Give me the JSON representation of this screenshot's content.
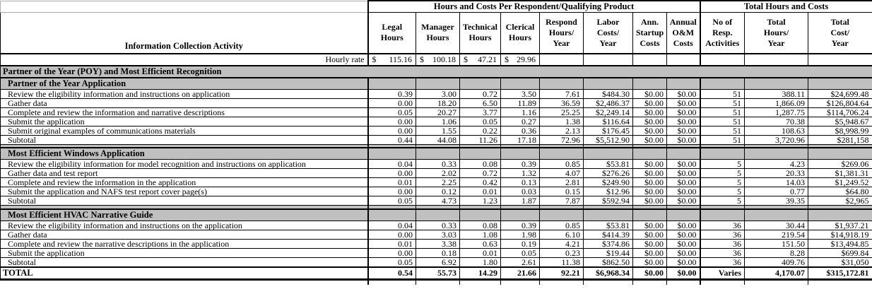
{
  "table": {
    "colors": {
      "band_gray": "#c0c0c0",
      "border_black": "#000000",
      "gridline_gray": "#ababab"
    },
    "header": {
      "respondent_group": "Hours and Costs Per Respondent/Qualifying Product",
      "total_group": "Total Hours and Costs"
    },
    "columns": [
      "Information Collection Activity",
      "Legal\nHours",
      "Manager\nHours",
      "Technical\nHours",
      "Clerical\nHours",
      "Respond\nHours/\nYear",
      "Labor\nCosts/\nYear",
      "Ann.\nStartup\nCosts",
      "Annual\nO&M\nCosts",
      "No of\nResp.\nActivities",
      "Total\nHours/\nYear",
      "Total\nCost/\nYear"
    ],
    "hourly_rate": {
      "label": "Hourly rate",
      "currency": "$",
      "values": [
        "115.16",
        "100.18",
        "47.21",
        "29.96"
      ]
    },
    "rows": [
      {
        "type": "section",
        "label": "Partner of the Year (POY) and Most Efficient Recognition"
      },
      {
        "type": "subsection",
        "label": "Partner of the Year Application"
      },
      {
        "type": "data",
        "label": "Review the eligibility information and instructions on application",
        "values": [
          "0.39",
          "3.00",
          "0.72",
          "3.50",
          "7.61",
          "$484.30",
          "$0.00",
          "$0.00",
          "51",
          "388.11",
          "$24,699.48"
        ]
      },
      {
        "type": "data",
        "label": "Gather data",
        "values": [
          "0.00",
          "18.20",
          "6.50",
          "11.89",
          "36.59",
          "$2,486.37",
          "$0.00",
          "$0.00",
          "51",
          "1,866.09",
          "$126,804.64"
        ]
      },
      {
        "type": "data",
        "label": "Complete and review the information and narrative descriptions",
        "values": [
          "0.05",
          "20.27",
          "3.77",
          "1.16",
          "25.25",
          "$2,249.14",
          "$0.00",
          "$0.00",
          "51",
          "1,287.75",
          "$114,706.24"
        ]
      },
      {
        "type": "data",
        "label": "Submit the application",
        "values": [
          "0.00",
          "1.06",
          "0.05",
          "0.27",
          "1.38",
          "$116.64",
          "$0.00",
          "$0.00",
          "51",
          "70.38",
          "$5,948.67"
        ]
      },
      {
        "type": "data",
        "label": "Submit original examples of communications materials",
        "values": [
          "0.00",
          "1.55",
          "0.22",
          "0.36",
          "2.13",
          "$176.45",
          "$0.00",
          "$0.00",
          "51",
          "108.63",
          "$8,998.99"
        ]
      },
      {
        "type": "data",
        "label": "Subtotal",
        "values": [
          "0.44",
          "44.08",
          "11.26",
          "17.18",
          "72.96",
          "$5,512.90",
          "$0.00",
          "$0.00",
          "51",
          "3,720.96",
          "$281,158"
        ]
      },
      {
        "type": "spacer"
      },
      {
        "type": "subsection",
        "label": "Most Efficient Windows Application"
      },
      {
        "type": "data",
        "label": "Review the eligibility information for model recognition and instructions on application",
        "values": [
          "0.04",
          "0.33",
          "0.08",
          "0.39",
          "0.85",
          "$53.81",
          "$0.00",
          "$0.00",
          "5",
          "4.23",
          "$269.06"
        ]
      },
      {
        "type": "data",
        "label": "Gather data and test report",
        "values": [
          "0.00",
          "2.02",
          "0.72",
          "1.32",
          "4.07",
          "$276.26",
          "$0.00",
          "$0.00",
          "5",
          "20.33",
          "$1,381.31"
        ]
      },
      {
        "type": "data",
        "label": "Complete and review the information in the application",
        "values": [
          "0.01",
          "2.25",
          "0.42",
          "0.13",
          "2.81",
          "$249.90",
          "$0.00",
          "$0.00",
          "5",
          "14.03",
          "$1,249.52"
        ]
      },
      {
        "type": "data",
        "label": "Submit the application and NAFS test report cover page(s)",
        "values": [
          "0.00",
          "0.12",
          "0.01",
          "0.03",
          "0.15",
          "$12.96",
          "$0.00",
          "$0.00",
          "5",
          "0.77",
          "$64.80"
        ]
      },
      {
        "type": "data",
        "label": "Subtotal",
        "values": [
          "0.05",
          "4.73",
          "1.23",
          "1.87",
          "7.87",
          "$592.94",
          "$0.00",
          "$0.00",
          "5",
          "39.35",
          "$2,965"
        ]
      },
      {
        "type": "spacer"
      },
      {
        "type": "subsection",
        "label": "Most Efficient HVAC Narrative Guide"
      },
      {
        "type": "data",
        "label": "Review the eligibility information and instructions on the application",
        "values": [
          "0.04",
          "0.33",
          "0.08",
          "0.39",
          "0.85",
          "$53.81",
          "$0.00",
          "$0.00",
          "36",
          "30.44",
          "$1,937.21"
        ]
      },
      {
        "type": "data",
        "label": "Gather data",
        "values": [
          "0.00",
          "3.03",
          "1.08",
          "1.98",
          "6.10",
          "$414.39",
          "$0.00",
          "$0.00",
          "36",
          "219.54",
          "$14,918.19"
        ]
      },
      {
        "type": "data",
        "label": "Complete and review the narrative descriptions in the application",
        "values": [
          "0.01",
          "3.38",
          "0.63",
          "0.19",
          "4.21",
          "$374.86",
          "$0.00",
          "$0.00",
          "36",
          "151.50",
          "$13,494.85"
        ]
      },
      {
        "type": "data",
        "label": "Submit the application",
        "values": [
          "0.00",
          "0.18",
          "0.01",
          "0.05",
          "0.23",
          "$19.44",
          "$0.00",
          "$0.00",
          "36",
          "8.28",
          "$699.84"
        ]
      },
      {
        "type": "data",
        "label": "Subtotal",
        "values": [
          "0.05",
          "6.92",
          "1.80",
          "2.61",
          "11.38",
          "$862.50",
          "$0.00",
          "$0.00",
          "36",
          "409.76",
          "$31,050"
        ]
      },
      {
        "type": "total",
        "label": "TOTAL",
        "values": [
          "0.54",
          "55.73",
          "14.29",
          "21.66",
          "92.21",
          "$6,968.34",
          "$0.00",
          "$0.00",
          "Varies",
          "4,170.07",
          "$315,172.81"
        ]
      }
    ]
  }
}
